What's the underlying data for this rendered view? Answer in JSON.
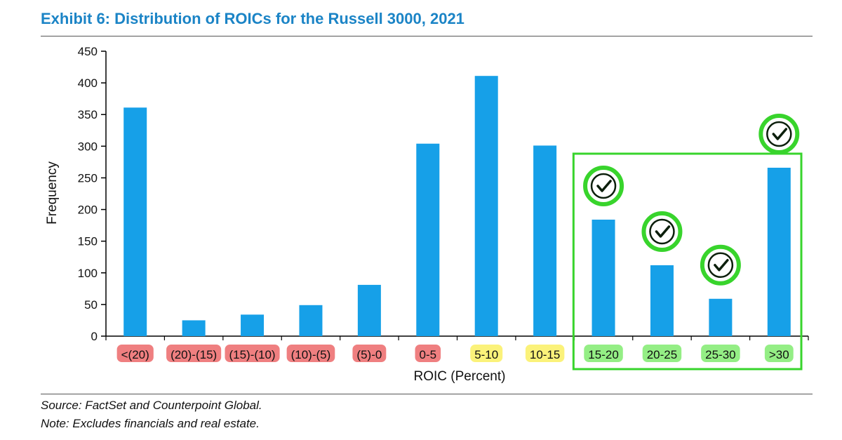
{
  "title": "Exhibit 6: Distribution of ROICs for the Russell 3000, 2021",
  "notes": {
    "source": "Source: FactSet and Counterpoint Global.",
    "exclusion": "Note: Excludes financials and real estate."
  },
  "colors": {
    "title": "#1b84c6",
    "bar": "#16a0e8",
    "label_red": "#ef7f80",
    "label_yellow": "#fbf27a",
    "label_green": "#94ee85",
    "highlight_green": "#38d42c"
  },
  "chart_data": {
    "type": "bar",
    "categories": [
      "<(20)",
      "(20)-(15)",
      "(15)-(10)",
      "(10)-(5)",
      "(5)-0",
      "0-5",
      "5-10",
      "10-15",
      "15-20",
      "20-25",
      "25-30",
      ">30"
    ],
    "values": [
      361,
      25,
      34,
      49,
      81,
      304,
      411,
      301,
      184,
      112,
      59,
      266
    ],
    "category_label_colors": [
      "red",
      "red",
      "red",
      "red",
      "red",
      "red",
      "yellow",
      "yellow",
      "green",
      "green",
      "green",
      "green"
    ],
    "checkmark_icons": [
      "15-20",
      "20-25",
      "25-30",
      ">30"
    ],
    "highlight_box": [
      "15-20",
      "20-25",
      "25-30",
      ">30"
    ],
    "xlabel": "ROIC (Percent)",
    "ylabel": "Frequency",
    "ylim": [
      0,
      450
    ],
    "yticks": [
      0,
      50,
      100,
      150,
      200,
      250,
      300,
      350,
      400,
      450
    ],
    "grid": false,
    "legend": "none"
  }
}
